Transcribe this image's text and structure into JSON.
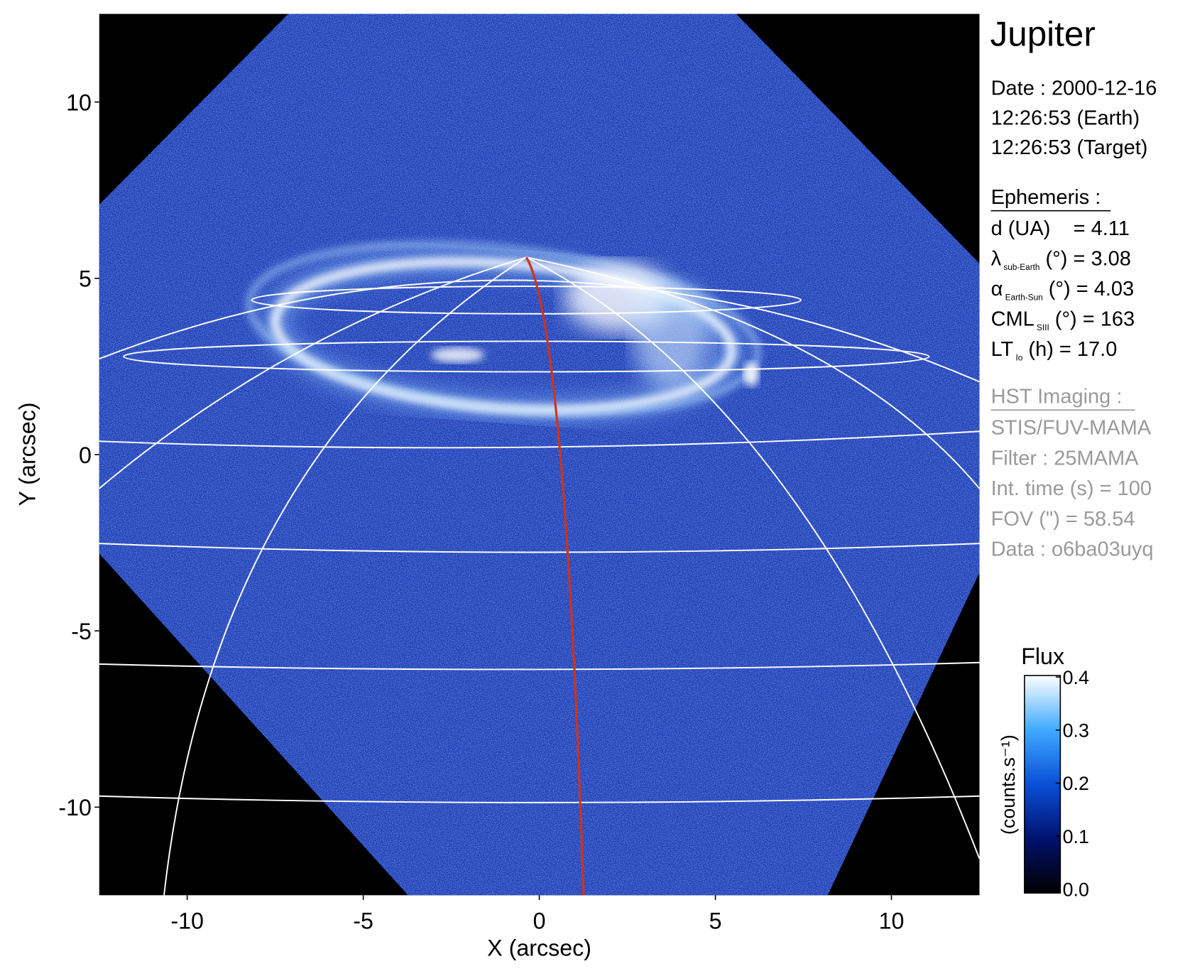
{
  "chart_data": {
    "type": "image",
    "xlabel": "X (arcsec)",
    "ylabel": "Y (arcsec)",
    "xlim": [
      -12.5,
      12.5
    ],
    "ylim": [
      -12.5,
      12.5
    ],
    "xticks": [
      -10,
      -5,
      0,
      5,
      10
    ],
    "yticks": [
      -10,
      -5,
      0,
      5,
      10
    ],
    "colorbar": {
      "title": "Flux",
      "label": "(counts.s⁻¹)",
      "clim": [
        0,
        0.4
      ],
      "ticks": [
        {
          "value": 0,
          "label": "0.0"
        },
        0.1,
        0.2,
        0.3,
        0.4
      ],
      "colors": [
        "#000000",
        "#00126e",
        "#0a4fd8",
        "#40aaff",
        "#ffffff"
      ]
    }
  },
  "info": {
    "title": "Jupiter",
    "date_lines": [
      "Date : 2000-12-16",
      "12:26:53 (Earth)",
      "12:26:53 (Target)"
    ],
    "ephemeris": {
      "heading": "Ephemeris :",
      "lines": [
        {
          "text": "d (UA)    = 4.11"
        },
        {
          "symbol": "λ",
          "sub": "sub-Earth",
          "text": " (°) = 3.08"
        },
        {
          "symbol": "α",
          "sub": "Earth-Sun",
          "text": " (°) = 4.03"
        },
        {
          "symbol": "CML",
          "sub": "SIII",
          "text": " (°) = 163"
        },
        {
          "symbol": "LT",
          "sub": "Io",
          "text": " (h) = 17.0"
        }
      ]
    },
    "imaging": {
      "heading": "HST Imaging :",
      "lines": [
        "STIS/FUV-MAMA",
        "Filter : 25MAMA",
        "Int. time (s) = 100",
        "FOV (\") = 58.54",
        "Data : o6ba03uyq"
      ]
    }
  }
}
